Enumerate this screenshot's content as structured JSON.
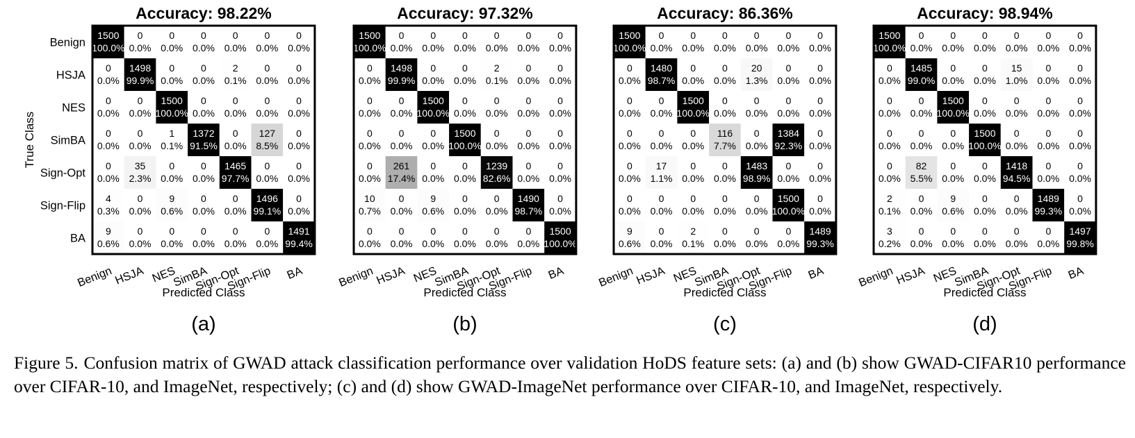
{
  "chart_data": [
    {
      "type": "heatmap",
      "panel": "(a)",
      "title": "Accuracy: 98.22%",
      "xlabel": "Predicted Class",
      "ylabel": "True Class",
      "categories": [
        "Benign",
        "HSJA",
        "NES",
        "SimBA",
        "Sign-Opt",
        "Sign-Flip",
        "BA"
      ],
      "counts": [
        [
          1500,
          0,
          0,
          0,
          0,
          0,
          0
        ],
        [
          0,
          1498,
          0,
          0,
          2,
          0,
          0
        ],
        [
          0,
          0,
          1500,
          0,
          0,
          0,
          0
        ],
        [
          0,
          0,
          1,
          1372,
          0,
          127,
          0
        ],
        [
          0,
          35,
          0,
          0,
          1465,
          0,
          0
        ],
        [
          4,
          0,
          9,
          0,
          0,
          1496,
          0
        ],
        [
          9,
          0,
          0,
          0,
          0,
          0,
          1491
        ]
      ],
      "percents": [
        [
          "100.0%",
          "0.0%",
          "0.0%",
          "0.0%",
          "0.0%",
          "0.0%",
          "0.0%"
        ],
        [
          "0.0%",
          "99.9%",
          "0.0%",
          "0.0%",
          "0.1%",
          "0.0%",
          "0.0%"
        ],
        [
          "0.0%",
          "0.0%",
          "100.0%",
          "0.0%",
          "0.0%",
          "0.0%",
          "0.0%"
        ],
        [
          "0.0%",
          "0.0%",
          "0.1%",
          "91.5%",
          "0.0%",
          "8.5%",
          "0.0%"
        ],
        [
          "0.0%",
          "2.3%",
          "0.0%",
          "0.0%",
          "97.7%",
          "0.0%",
          "0.0%"
        ],
        [
          "0.3%",
          "0.0%",
          "0.6%",
          "0.0%",
          "0.0%",
          "99.1%",
          "0.0%"
        ],
        [
          "0.6%",
          "0.0%",
          "0.0%",
          "0.0%",
          "0.0%",
          "0.0%",
          "99.4%"
        ]
      ]
    },
    {
      "type": "heatmap",
      "panel": "(b)",
      "title": "Accuracy: 97.32%",
      "xlabel": "Predicted Class",
      "ylabel": "",
      "categories": [
        "Benign",
        "HSJA",
        "NES",
        "SimBA",
        "Sign-Opt",
        "Sign-Flip",
        "BA"
      ],
      "counts": [
        [
          1500,
          0,
          0,
          0,
          0,
          0,
          0
        ],
        [
          0,
          1498,
          0,
          0,
          2,
          0,
          0
        ],
        [
          0,
          0,
          1500,
          0,
          0,
          0,
          0
        ],
        [
          0,
          0,
          0,
          1500,
          0,
          0,
          0
        ],
        [
          0,
          261,
          0,
          0,
          1239,
          0,
          0
        ],
        [
          10,
          0,
          9,
          0,
          0,
          1490,
          0
        ],
        [
          0,
          0,
          0,
          0,
          0,
          0,
          1500
        ]
      ],
      "percents": [
        [
          "100.0%",
          "0.0%",
          "0.0%",
          "0.0%",
          "0.0%",
          "0.0%",
          "0.0%"
        ],
        [
          "0.0%",
          "99.9%",
          "0.0%",
          "0.0%",
          "0.1%",
          "0.0%",
          "0.0%"
        ],
        [
          "0.0%",
          "0.0%",
          "100.0%",
          "0.0%",
          "0.0%",
          "0.0%",
          "0.0%"
        ],
        [
          "0.0%",
          "0.0%",
          "0.0%",
          "100.0%",
          "0.0%",
          "0.0%",
          "0.0%"
        ],
        [
          "0.0%",
          "17.4%",
          "0.0%",
          "0.0%",
          "82.6%",
          "0.0%",
          "0.0%"
        ],
        [
          "0.7%",
          "0.0%",
          "0.6%",
          "0.0%",
          "0.0%",
          "98.7%",
          "0.0%"
        ],
        [
          "0.0%",
          "0.0%",
          "0.0%",
          "0.0%",
          "0.0%",
          "0.0%",
          "100.0%"
        ]
      ]
    },
    {
      "type": "heatmap",
      "panel": "(c)",
      "title": "Accuracy: 86.36%",
      "xlabel": "Predicted Class",
      "ylabel": "",
      "categories": [
        "Benign",
        "HSJA",
        "NES",
        "SimBA",
        "Sign-Opt",
        "Sign-Flip",
        "BA"
      ],
      "counts": [
        [
          1500,
          0,
          0,
          0,
          0,
          0,
          0
        ],
        [
          0,
          1480,
          0,
          0,
          20,
          0,
          0
        ],
        [
          0,
          0,
          1500,
          0,
          0,
          0,
          0
        ],
        [
          0,
          0,
          0,
          116,
          0,
          1384,
          0
        ],
        [
          0,
          17,
          0,
          0,
          1483,
          0,
          0
        ],
        [
          0,
          0,
          0,
          0,
          0,
          1500,
          0
        ],
        [
          9,
          0,
          2,
          0,
          0,
          0,
          1489
        ]
      ],
      "percents": [
        [
          "100.0%",
          "0.0%",
          "0.0%",
          "0.0%",
          "0.0%",
          "0.0%",
          "0.0%"
        ],
        [
          "0.0%",
          "98.7%",
          "0.0%",
          "0.0%",
          "1.3%",
          "0.0%",
          "0.0%"
        ],
        [
          "0.0%",
          "0.0%",
          "100.0%",
          "0.0%",
          "0.0%",
          "0.0%",
          "0.0%"
        ],
        [
          "0.0%",
          "0.0%",
          "0.0%",
          "7.7%",
          "0.0%",
          "92.3%",
          "0.0%"
        ],
        [
          "0.0%",
          "1.1%",
          "0.0%",
          "0.0%",
          "98.9%",
          "0.0%",
          "0.0%"
        ],
        [
          "0.0%",
          "0.0%",
          "0.0%",
          "0.0%",
          "0.0%",
          "100.0%",
          "0.0%"
        ],
        [
          "0.6%",
          "0.0%",
          "0.1%",
          "0.0%",
          "0.0%",
          "0.0%",
          "99.3%"
        ]
      ]
    },
    {
      "type": "heatmap",
      "panel": "(d)",
      "title": "Accuracy: 98.94%",
      "xlabel": "Predicted Class",
      "ylabel": "",
      "categories": [
        "Benign",
        "HSJA",
        "NES",
        "SimBA",
        "Sign-Opt",
        "Sign-Flip",
        "BA"
      ],
      "counts": [
        [
          1500,
          0,
          0,
          0,
          0,
          0,
          0
        ],
        [
          0,
          1485,
          0,
          0,
          15,
          0,
          0
        ],
        [
          0,
          0,
          1500,
          0,
          0,
          0,
          0
        ],
        [
          0,
          0,
          0,
          1500,
          0,
          0,
          0
        ],
        [
          0,
          82,
          0,
          0,
          1418,
          0,
          0
        ],
        [
          2,
          0,
          9,
          0,
          0,
          1489,
          0
        ],
        [
          3,
          0,
          0,
          0,
          0,
          0,
          1497
        ]
      ],
      "percents": [
        [
          "100.0%",
          "0.0%",
          "0.0%",
          "0.0%",
          "0.0%",
          "0.0%",
          "0.0%"
        ],
        [
          "0.0%",
          "99.0%",
          "0.0%",
          "0.0%",
          "1.0%",
          "0.0%",
          "0.0%"
        ],
        [
          "0.0%",
          "0.0%",
          "100.0%",
          "0.0%",
          "0.0%",
          "0.0%",
          "0.0%"
        ],
        [
          "0.0%",
          "0.0%",
          "0.0%",
          "100.0%",
          "0.0%",
          "0.0%",
          "0.0%"
        ],
        [
          "0.0%",
          "5.5%",
          "0.0%",
          "0.0%",
          "94.5%",
          "0.0%",
          "0.0%"
        ],
        [
          "0.1%",
          "0.0%",
          "0.6%",
          "0.0%",
          "0.0%",
          "99.3%",
          "0.0%"
        ],
        [
          "0.2%",
          "0.0%",
          "0.0%",
          "0.0%",
          "0.0%",
          "0.0%",
          "99.8%"
        ]
      ]
    }
  ],
  "caption": {
    "label": "Figure 5.",
    "text": "Confusion matrix of GWAD attack classification performance over validation HoDS feature sets: (a) and (b) show GWAD-CIFAR10 performance over CIFAR-10, and ImageNet, respectively; (c) and (d) show GWAD-ImageNet performance over CIFAR-10, and ImageNet, respectively."
  }
}
